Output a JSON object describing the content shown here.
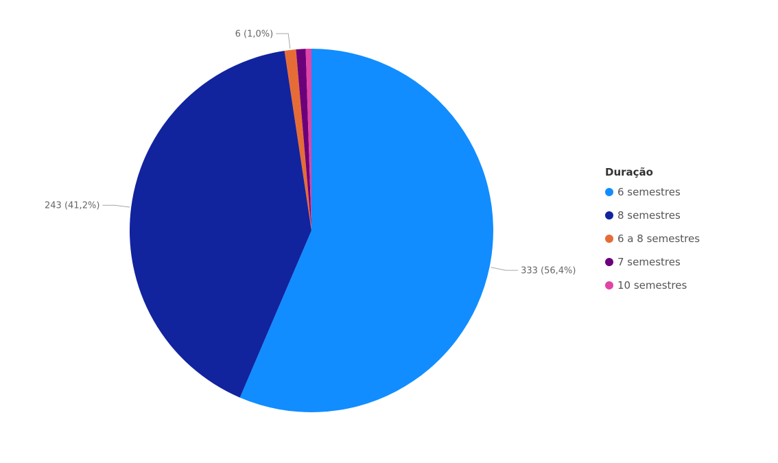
{
  "chart_data": {
    "type": "pie",
    "legend_title": "Duração",
    "legend_position": "right",
    "slices": [
      {
        "name": "6 semestres",
        "value": 333,
        "color": "#118DFF",
        "label": "333 (56,4%)"
      },
      {
        "name": "8 semestres",
        "value": 243,
        "color": "#12239E",
        "label": "243 (41,2%)"
      },
      {
        "name": "6 a 8 semestres",
        "value": 6,
        "color": "#E66C37",
        "label": "6 (1,0%)"
      },
      {
        "name": "7 semestres",
        "value": 5,
        "color": "#6B007B",
        "label": ""
      },
      {
        "name": "10 semestres",
        "value": 3,
        "color": "#E044A7",
        "label": ""
      }
    ]
  }
}
